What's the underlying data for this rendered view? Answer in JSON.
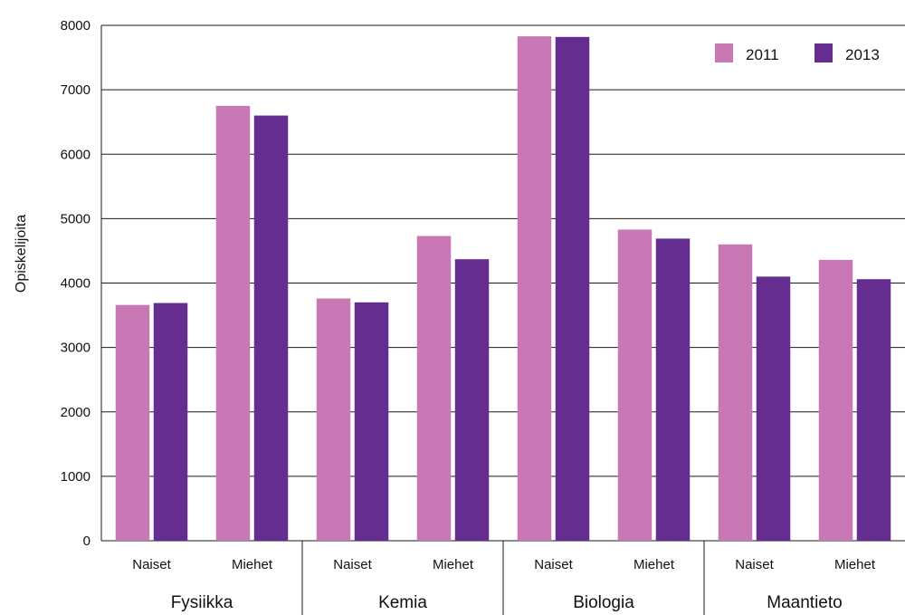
{
  "chart_data": {
    "type": "bar",
    "ylabel": "Opiskelijoita",
    "ylim": [
      0,
      8000
    ],
    "yticks": [
      0,
      1000,
      2000,
      3000,
      4000,
      5000,
      6000,
      7000,
      8000
    ],
    "grid": true,
    "legend_position": "top-right",
    "groups": [
      "Fysiikka",
      "Kemia",
      "Biologia",
      "Maantieto"
    ],
    "subcategories": [
      "Naiset",
      "Miehet"
    ],
    "series": [
      {
        "name": "2011",
        "color": "#c879b5",
        "values": [
          3660,
          6750,
          3760,
          4730,
          7830,
          4830,
          4600,
          4360
        ]
      },
      {
        "name": "2013",
        "color": "#662d91",
        "values": [
          3690,
          6600,
          3700,
          4370,
          7820,
          4690,
          4100,
          4060
        ]
      }
    ]
  }
}
